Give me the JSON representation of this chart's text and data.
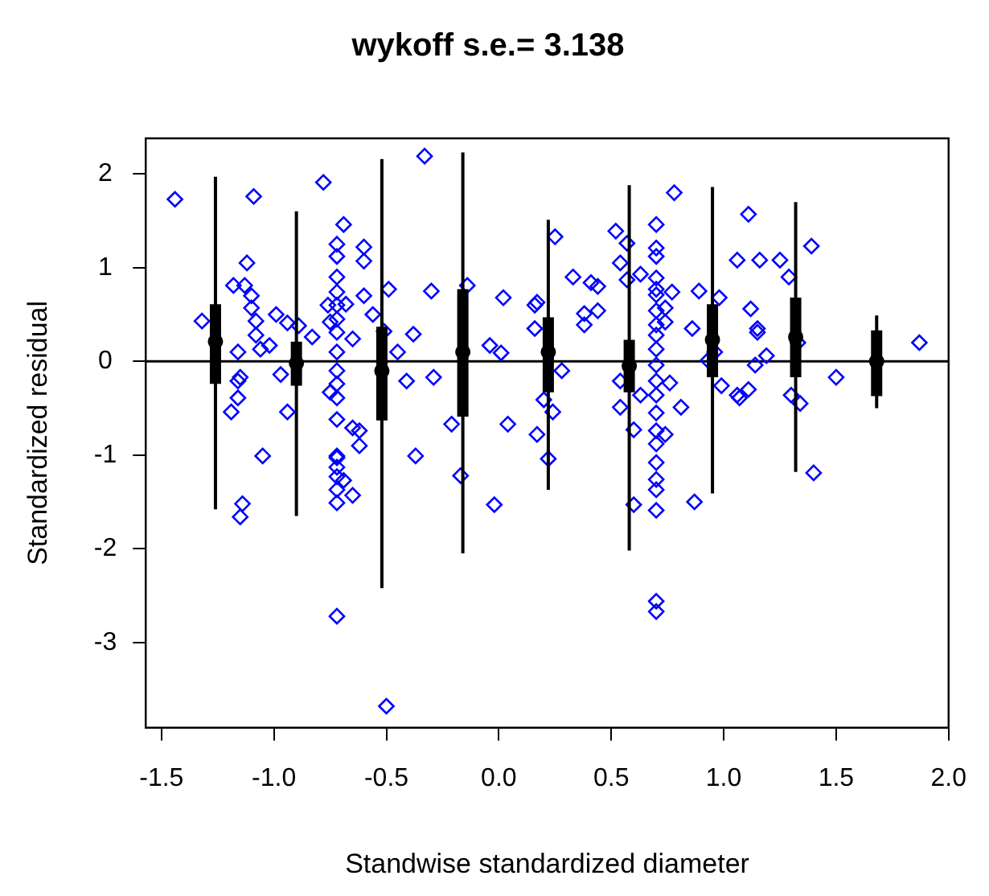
{
  "chart_data": {
    "type": "scatter",
    "title": "wykoff s.e.= 3.138",
    "xlabel": "Standwise standardized diameter",
    "ylabel": "Standardized residual",
    "xlim": [
      -1.57,
      2.0
    ],
    "ylim": [
      -3.91,
      2.38
    ],
    "xticks": [
      -1.5,
      {
        "value": -1,
        "label": "-1.0"
      },
      -0.5,
      {
        "value": 0,
        "label": "0.0"
      },
      0.5,
      {
        "value": 1,
        "label": "1.0"
      },
      1.5,
      {
        "value": 2,
        "label": "2.0"
      }
    ],
    "yticks": [
      -3,
      -2,
      -1,
      0,
      1,
      2
    ],
    "grid": false,
    "legend": false,
    "marker": "diamond",
    "ref_lines": [
      {
        "axis": "y",
        "value": 0,
        "color": "#000000"
      }
    ],
    "series": [
      {
        "type": "scatter",
        "color": "#0000ff",
        "x": [
          -1.44,
          -1.32,
          -1.18,
          -1.13,
          -1.12,
          -1.09,
          -1.1,
          -1.1,
          -1.08,
          -1.08,
          -1.06,
          -1.02,
          -0.99,
          -0.94,
          -0.89,
          -0.83,
          -1.16,
          -1.15,
          -1.16,
          -1.16,
          -1.19,
          -0.97,
          -0.94,
          -1.05,
          -0.78,
          -0.69,
          -0.72,
          -0.72,
          -0.6,
          -0.6,
          -0.72,
          -0.72,
          -0.72,
          -0.76,
          -0.68,
          -0.6,
          -0.56,
          -0.72,
          -0.75,
          -0.72,
          -0.65,
          -0.72,
          -0.72,
          -0.72,
          -0.75,
          -0.72,
          -0.72,
          -0.65,
          -0.62,
          -0.62,
          -0.72,
          -0.49,
          -0.51,
          -0.45,
          -0.41,
          -0.38,
          -0.3,
          -0.29,
          -0.33,
          -0.14,
          -0.21,
          -0.37,
          -0.04,
          0.01,
          0.02,
          0.04,
          0.16,
          0.17,
          0.16,
          0.25,
          0.2,
          0.24,
          0.17,
          0.28,
          -1.14,
          -1.15,
          -0.72,
          -0.72,
          -0.72,
          -0.69,
          -0.72,
          -0.65,
          -0.72,
          -0.72,
          -0.5,
          -0.17,
          -0.02,
          0.22,
          0.52,
          0.57,
          0.54,
          0.57,
          0.63,
          0.78,
          0.7,
          0.7,
          0.7,
          0.7,
          0.7,
          0.7,
          0.77,
          0.7,
          0.74,
          0.74,
          0.7,
          0.7,
          0.7,
          0.7,
          0.7,
          0.76,
          0.7,
          0.7,
          0.7,
          0.74,
          0.7,
          0.41,
          0.44,
          0.33,
          0.38,
          0.38,
          0.44,
          0.54,
          0.54,
          0.63,
          0.6,
          0.81,
          0.86,
          0.89,
          0.98,
          0.96,
          0.93,
          0.99,
          1.06,
          1.11,
          1.16,
          1.25,
          1.29,
          1.39,
          1.12,
          1.15,
          1.15,
          1.19,
          1.14,
          1.06,
          1.07,
          1.11,
          1.3,
          1.34,
          1.33,
          1.5,
          1.87,
          0.6,
          0.7,
          0.87,
          0.7,
          0.7,
          0.7,
          0.7,
          0.7,
          1.4
        ],
        "values": [
          1.73,
          0.43,
          0.81,
          0.81,
          1.05,
          1.76,
          0.7,
          0.57,
          0.43,
          0.28,
          0.13,
          0.17,
          0.5,
          0.41,
          0.38,
          0.26,
          0.1,
          -0.17,
          -0.21,
          -0.39,
          -0.54,
          -0.14,
          -0.54,
          -1.01,
          1.91,
          1.46,
          1.25,
          1.12,
          1.22,
          1.07,
          0.9,
          0.74,
          0.6,
          0.6,
          0.61,
          0.7,
          0.5,
          0.45,
          0.42,
          0.31,
          0.24,
          0.1,
          -0.1,
          -0.24,
          -0.33,
          -0.39,
          -0.62,
          -0.71,
          -0.74,
          -0.9,
          -1.01,
          0.77,
          0.32,
          0.1,
          -0.21,
          0.29,
          0.75,
          -0.17,
          2.19,
          0.81,
          -0.67,
          -1.01,
          0.17,
          0.09,
          0.68,
          -0.67,
          0.6,
          0.63,
          0.35,
          1.33,
          -0.41,
          -0.54,
          -0.78,
          -0.1,
          -1.52,
          -1.66,
          -1.03,
          -1.13,
          -1.23,
          -1.27,
          -1.37,
          -1.43,
          -1.51,
          -2.72,
          -3.68,
          -1.22,
          -1.53,
          -1.04,
          1.39,
          1.26,
          1.05,
          0.87,
          0.93,
          1.8,
          1.46,
          1.21,
          1.12,
          0.89,
          0.77,
          0.71,
          0.74,
          0.54,
          0.57,
          0.42,
          0.39,
          0.28,
          0.13,
          -0.04,
          -0.21,
          -0.23,
          -0.36,
          -0.55,
          -0.74,
          -0.78,
          -0.88,
          0.84,
          0.8,
          0.9,
          0.51,
          0.39,
          0.54,
          -0.21,
          -0.49,
          -0.36,
          -0.73,
          -0.49,
          0.35,
          0.75,
          0.68,
          0.1,
          0.01,
          -0.26,
          1.08,
          1.57,
          1.08,
          1.08,
          0.9,
          1.23,
          0.56,
          0.35,
          0.31,
          0.06,
          -0.04,
          -0.36,
          -0.39,
          -0.3,
          -0.36,
          -0.45,
          0.2,
          -0.17,
          0.2,
          -1.53,
          -1.59,
          -1.5,
          -1.37,
          -1.26,
          -1.08,
          -2.56,
          -2.67,
          -1.19
        ]
      },
      {
        "type": "box",
        "color": "#000000",
        "x": [
          -1.26,
          -0.9,
          -0.52,
          -0.16,
          0.22,
          0.58,
          0.95,
          1.32,
          1.68
        ],
        "boxes": [
          {
            "low": -1.58,
            "q1": -0.24,
            "median": 0.21,
            "q3": 0.61,
            "high": 1.97
          },
          {
            "low": -1.65,
            "q1": -0.26,
            "median": -0.02,
            "q3": 0.21,
            "high": 1.6
          },
          {
            "low": -2.42,
            "q1": -0.63,
            "median": -0.1,
            "q3": 0.37,
            "high": 2.16
          },
          {
            "low": -2.05,
            "q1": -0.59,
            "median": 0.1,
            "q3": 0.77,
            "high": 2.23
          },
          {
            "low": -1.37,
            "q1": -0.33,
            "median": 0.1,
            "q3": 0.47,
            "high": 1.51
          },
          {
            "low": -2.02,
            "q1": -0.33,
            "median": -0.05,
            "q3": 0.23,
            "high": 1.88
          },
          {
            "low": -1.41,
            "q1": -0.17,
            "median": 0.23,
            "q3": 0.61,
            "high": 1.86
          },
          {
            "low": -1.18,
            "q1": -0.17,
            "median": 0.26,
            "q3": 0.68,
            "high": 1.7
          },
          {
            "low": -0.5,
            "q1": -0.37,
            "median": 0,
            "q3": 0.33,
            "high": 0.49
          }
        ]
      }
    ]
  }
}
